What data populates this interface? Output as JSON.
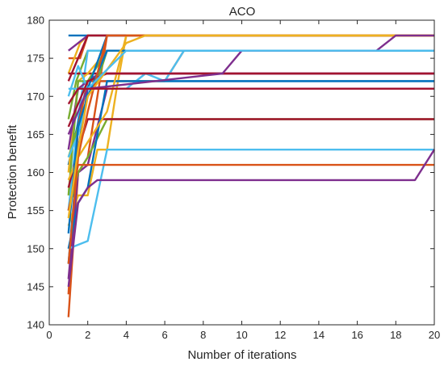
{
  "chart_data": {
    "type": "line",
    "title": "ACO",
    "xlabel": "Number of iterations",
    "ylabel": "Protection benefit",
    "xlim": [
      0,
      20
    ],
    "ylim": [
      140,
      180
    ],
    "xticks": [
      "0",
      "2",
      "4",
      "6",
      "8",
      "10",
      "12",
      "14",
      "16",
      "18",
      "20"
    ],
    "yticks": [
      "140",
      "145",
      "150",
      "155",
      "160",
      "165",
      "170",
      "175",
      "180"
    ],
    "grid": false,
    "legend": "none",
    "series": [
      {
        "color": "#0072BD",
        "points": [
          [
            1,
            178
          ],
          [
            20,
            178
          ]
        ]
      },
      {
        "color": "#D95319",
        "points": [
          [
            1,
            175
          ],
          [
            1.6,
            175
          ],
          [
            2,
            178
          ],
          [
            20,
            178
          ]
        ]
      },
      {
        "color": "#EDB120",
        "points": [
          [
            1,
            173
          ],
          [
            1.6,
            177
          ],
          [
            2,
            178
          ],
          [
            20,
            178
          ]
        ]
      },
      {
        "color": "#7E2F8E",
        "points": [
          [
            1,
            176
          ],
          [
            2,
            178
          ],
          [
            20,
            178
          ]
        ]
      },
      {
        "color": "#77AC30",
        "points": [
          [
            1,
            167
          ],
          [
            1.4,
            172
          ],
          [
            2,
            176
          ],
          [
            3,
            176
          ],
          [
            20,
            176
          ]
        ]
      },
      {
        "color": "#4DBEEE",
        "points": [
          [
            1,
            155
          ],
          [
            1.5,
            167
          ],
          [
            2,
            176
          ],
          [
            20,
            176
          ]
        ]
      },
      {
        "color": "#A2142F",
        "points": [
          [
            1,
            173
          ],
          [
            1.5,
            173
          ],
          [
            2,
            173
          ],
          [
            20,
            173
          ]
        ]
      },
      {
        "color": "#0072BD",
        "points": [
          [
            1,
            161
          ],
          [
            2,
            172
          ],
          [
            20,
            172
          ]
        ]
      },
      {
        "color": "#D95319",
        "points": [
          [
            1,
            144
          ],
          [
            1.5,
            166
          ],
          [
            2,
            172
          ],
          [
            6,
            172
          ],
          [
            7,
            176
          ],
          [
            20,
            176
          ]
        ]
      },
      {
        "color": "#EDB120",
        "points": [
          [
            1,
            160
          ],
          [
            1.5,
            172
          ],
          [
            2,
            173
          ],
          [
            3,
            176
          ],
          [
            20,
            176
          ]
        ]
      },
      {
        "color": "#7E2F8E",
        "points": [
          [
            1,
            163
          ],
          [
            1.5,
            171
          ],
          [
            2,
            172
          ],
          [
            2.6,
            173
          ],
          [
            3,
            173
          ],
          [
            20,
            173
          ]
        ]
      },
      {
        "color": "#77AC30",
        "points": [
          [
            1,
            157
          ],
          [
            1.5,
            172
          ],
          [
            2,
            172
          ],
          [
            3,
            176
          ],
          [
            20,
            176
          ]
        ]
      },
      {
        "color": "#4DBEEE",
        "points": [
          [
            1,
            170
          ],
          [
            1.5,
            174
          ],
          [
            2,
            171
          ],
          [
            4,
            171
          ],
          [
            5,
            173
          ],
          [
            6,
            172
          ],
          [
            7,
            176
          ],
          [
            20,
            176
          ]
        ]
      },
      {
        "color": "#A2142F",
        "points": [
          [
            1,
            172
          ],
          [
            2,
            178
          ],
          [
            20,
            178
          ]
        ]
      },
      {
        "color": "#0072BD",
        "points": [
          [
            1,
            148
          ],
          [
            1.5,
            163
          ],
          [
            2,
            171
          ],
          [
            3,
            178
          ],
          [
            20,
            178
          ]
        ]
      },
      {
        "color": "#D95319",
        "points": [
          [
            1,
            141
          ],
          [
            1.5,
            160
          ],
          [
            2,
            162
          ],
          [
            3,
            178
          ],
          [
            20,
            178
          ]
        ]
      },
      {
        "color": "#EDB120",
        "points": [
          [
            1,
            153
          ],
          [
            1.5,
            157
          ],
          [
            2,
            157
          ],
          [
            2.5,
            163
          ],
          [
            3,
            163
          ],
          [
            3.5,
            171
          ],
          [
            4,
            178
          ],
          [
            20,
            178
          ]
        ]
      },
      {
        "color": "#7E2F8E",
        "points": [
          [
            1,
            146
          ],
          [
            1.5,
            160
          ],
          [
            2,
            161
          ],
          [
            3,
            171
          ],
          [
            20,
            171
          ]
        ]
      },
      {
        "color": "#77AC30",
        "points": [
          [
            1,
            155
          ],
          [
            1.5,
            160
          ],
          [
            2,
            162
          ],
          [
            3,
            167
          ],
          [
            20,
            167
          ]
        ]
      },
      {
        "color": "#4DBEEE",
        "points": [
          [
            1,
            150
          ],
          [
            2,
            151
          ],
          [
            3,
            163
          ],
          [
            19,
            163
          ],
          [
            20,
            163
          ]
        ]
      },
      {
        "color": "#A2142F",
        "points": [
          [
            1,
            158
          ],
          [
            1.5,
            163
          ],
          [
            2,
            167
          ],
          [
            20,
            167
          ]
        ]
      },
      {
        "color": "#0072BD",
        "points": [
          [
            1,
            150
          ],
          [
            1.5,
            156
          ],
          [
            2,
            158
          ],
          [
            3,
            172
          ],
          [
            20,
            172
          ]
        ]
      },
      {
        "color": "#D95319",
        "points": [
          [
            1,
            155
          ],
          [
            1.5,
            161
          ],
          [
            2,
            161
          ],
          [
            4,
            161
          ],
          [
            20,
            161
          ]
        ]
      },
      {
        "color": "#EDB120",
        "points": [
          [
            1,
            159
          ],
          [
            1.5,
            162
          ],
          [
            3,
            168
          ],
          [
            4,
            178
          ],
          [
            20,
            178
          ]
        ]
      },
      {
        "color": "#7E2F8E",
        "points": [
          [
            1,
            145
          ],
          [
            1.5,
            156
          ],
          [
            2,
            158
          ],
          [
            2.5,
            159
          ],
          [
            19,
            159
          ],
          [
            20,
            163
          ]
        ]
      },
      {
        "color": "#77AC30",
        "points": [
          [
            1,
            162
          ],
          [
            1.5,
            166
          ],
          [
            2,
            170
          ],
          [
            2.5,
            172
          ],
          [
            3,
            176
          ],
          [
            20,
            176
          ]
        ]
      },
      {
        "color": "#4DBEEE",
        "points": [
          [
            1,
            162
          ],
          [
            1.5,
            165
          ],
          [
            2,
            170
          ],
          [
            3,
            176
          ],
          [
            4,
            176
          ],
          [
            20,
            176
          ]
        ]
      },
      {
        "color": "#A2142F",
        "points": [
          [
            1,
            166
          ],
          [
            2,
            172
          ],
          [
            3,
            173
          ],
          [
            20,
            173
          ]
        ]
      },
      {
        "color": "#0072BD",
        "points": [
          [
            1,
            152
          ],
          [
            1.5,
            166
          ],
          [
            2,
            170
          ],
          [
            3,
            176
          ],
          [
            20,
            176
          ]
        ]
      },
      {
        "color": "#D95319",
        "points": [
          [
            1,
            148
          ],
          [
            1.5,
            162
          ],
          [
            2,
            168
          ],
          [
            3,
            178
          ],
          [
            20,
            178
          ]
        ]
      },
      {
        "color": "#EDB120",
        "points": [
          [
            1,
            154
          ],
          [
            1.5,
            163
          ],
          [
            2,
            170
          ],
          [
            4,
            177
          ],
          [
            5,
            178
          ],
          [
            20,
            178
          ]
        ]
      },
      {
        "color": "#7E2F8E",
        "points": [
          [
            1,
            165
          ],
          [
            2,
            171
          ],
          [
            9,
            173
          ],
          [
            10,
            176
          ],
          [
            17,
            176
          ],
          [
            18,
            178
          ],
          [
            20,
            178
          ]
        ]
      },
      {
        "color": "#4DBEEE",
        "points": [
          [
            1,
            171
          ],
          [
            2,
            171
          ],
          [
            4,
            176
          ],
          [
            20,
            176
          ]
        ]
      },
      {
        "color": "#A2142F",
        "points": [
          [
            1,
            169
          ],
          [
            1.5,
            171
          ],
          [
            2,
            171
          ],
          [
            20,
            171
          ]
        ]
      }
    ]
  }
}
